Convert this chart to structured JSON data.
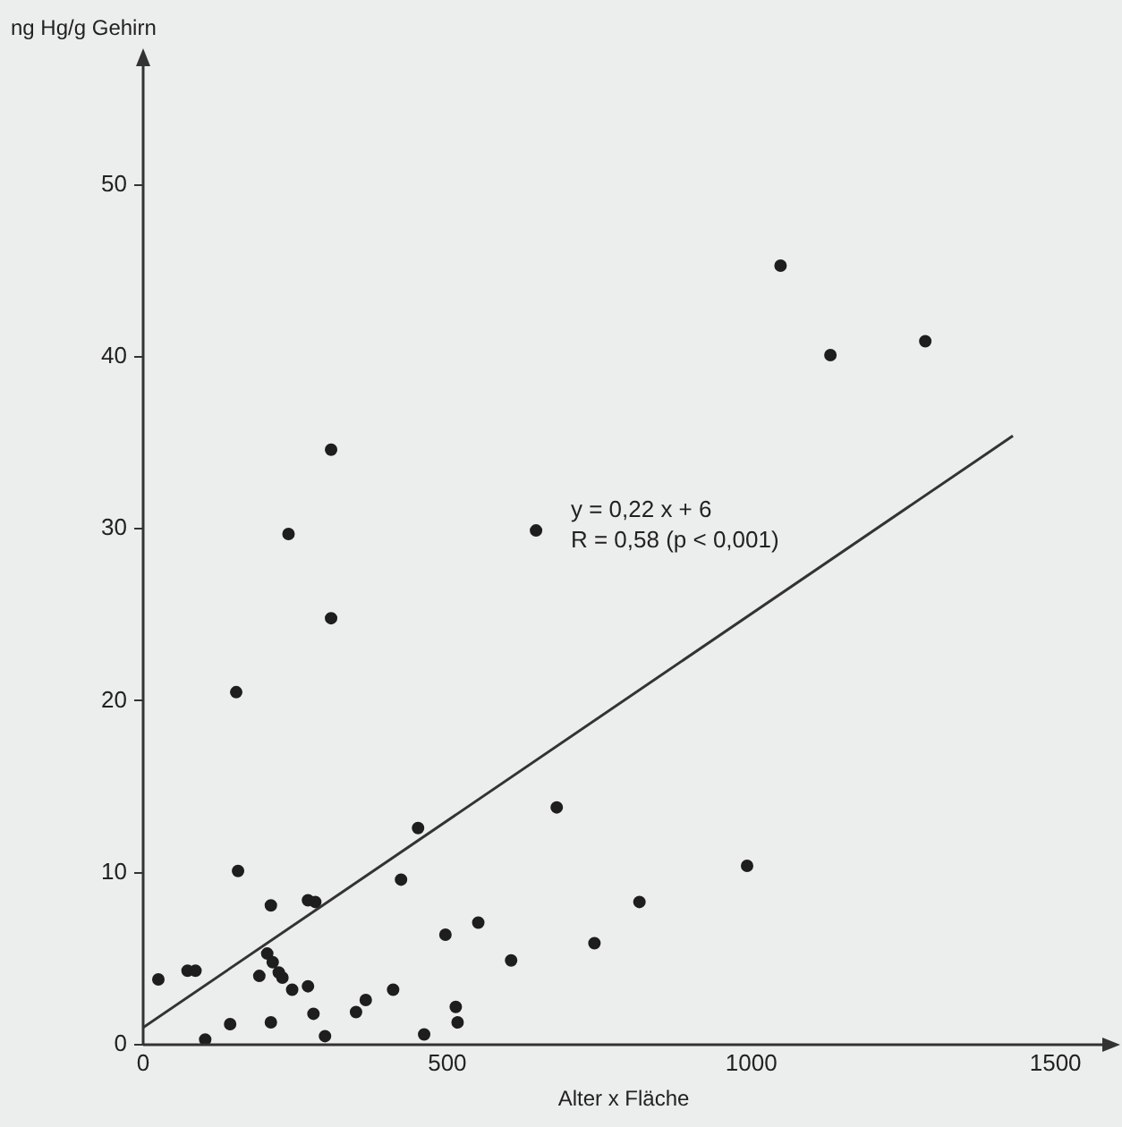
{
  "chart_data": {
    "type": "scatter",
    "xlabel": "Alter x Fläche",
    "ylabel": "ng Hg/g Gehirn",
    "xlim": [
      0,
      1580
    ],
    "ylim": [
      0,
      57
    ],
    "xticks": [
      0,
      500,
      1000,
      1500
    ],
    "yticks": [
      0,
      10,
      20,
      30,
      40,
      50
    ],
    "grid": false,
    "legend": false,
    "marker": "circle",
    "annotations": [
      "y = 0,22 x + 6",
      "R = 0,58 (p < 0,001)"
    ],
    "series": [
      {
        "color": "#1e1e1e",
        "x": [
          25,
          73,
          86,
          102,
          143,
          156,
          210,
          191,
          210,
          204,
          213,
          223,
          229,
          245,
          271,
          271,
          283,
          280,
          299,
          350,
          366,
          411,
          424,
          452,
          462,
          497,
          514,
          517,
          551,
          605,
          680,
          742,
          816,
          993,
          309,
          239,
          646,
          309,
          153,
          1048,
          1130,
          1286
        ],
        "values": [
          3.8,
          4.3,
          4.3,
          0.3,
          1.2,
          10.1,
          8.1,
          4.0,
          1.3,
          5.3,
          4.8,
          4.2,
          3.9,
          3.2,
          3.4,
          8.4,
          8.3,
          1.8,
          0.5,
          1.9,
          2.6,
          3.2,
          9.6,
          12.6,
          0.6,
          6.4,
          2.2,
          1.3,
          7.1,
          4.9,
          13.8,
          5.9,
          8.3,
          10.4,
          34.6,
          29.7,
          29.9,
          24.8,
          20.5,
          45.3,
          40.1,
          40.9
        ]
      },
      {
        "type": "line",
        "color": "#333333",
        "line_style": "solid",
        "marker": "none",
        "x": [
          0,
          1430
        ],
        "values": [
          1,
          35.4
        ]
      }
    ]
  }
}
